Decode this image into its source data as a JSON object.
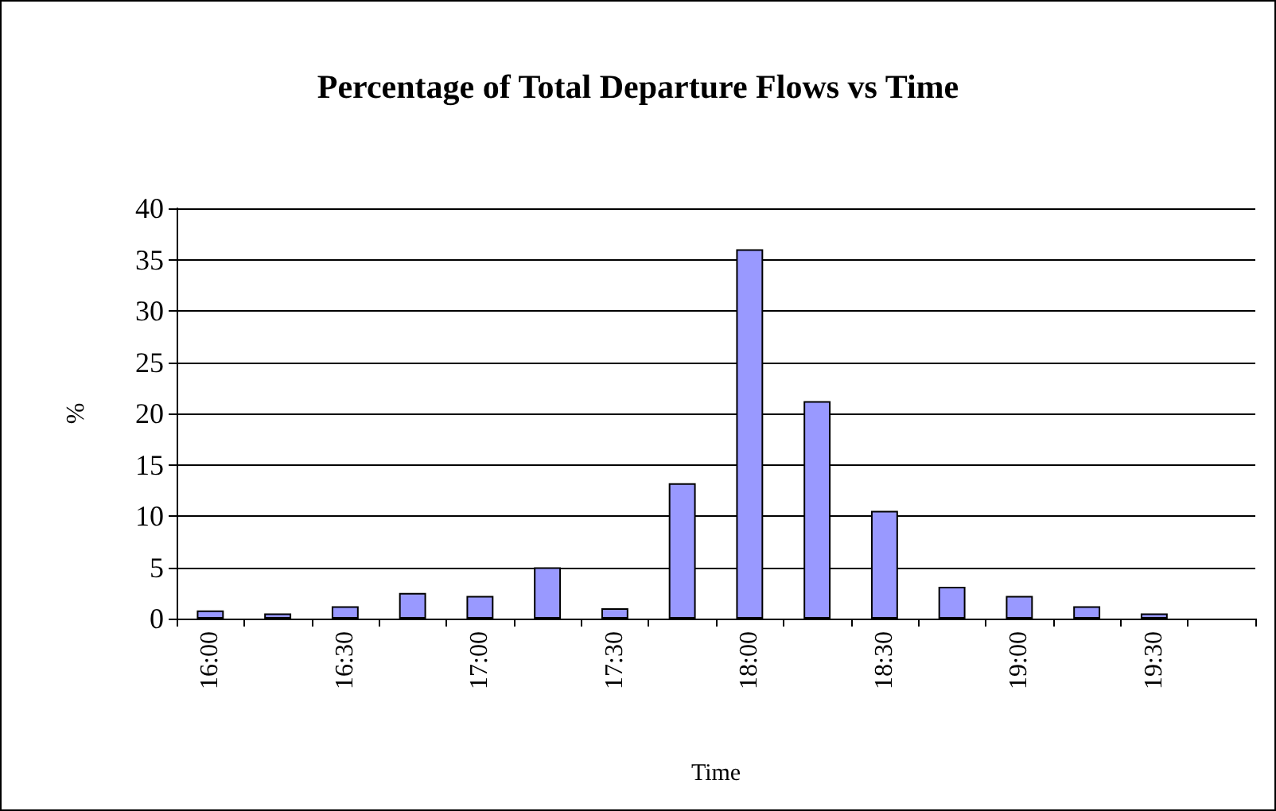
{
  "chart_data": {
    "type": "bar",
    "title": "Percentage of Total Departure Flows vs Time",
    "xlabel": "Time",
    "ylabel": "%",
    "categories": [
      "16:00",
      null,
      "16:30",
      null,
      "17:00",
      null,
      "17:30",
      null,
      "18:00",
      null,
      "18:30",
      null,
      "19:00",
      null,
      "19:30",
      null
    ],
    "values": [
      0.8,
      0.5,
      1.2,
      2.5,
      2.2,
      5,
      1.0,
      13.2,
      36,
      21.2,
      10.5,
      3.1,
      2.2,
      1.2,
      0.5,
      null
    ],
    "color": "#9999ff",
    "ylim": [
      0,
      40
    ],
    "yticks": [
      0,
      5,
      10,
      15,
      20,
      25,
      30,
      35,
      40
    ],
    "grid": "y"
  }
}
